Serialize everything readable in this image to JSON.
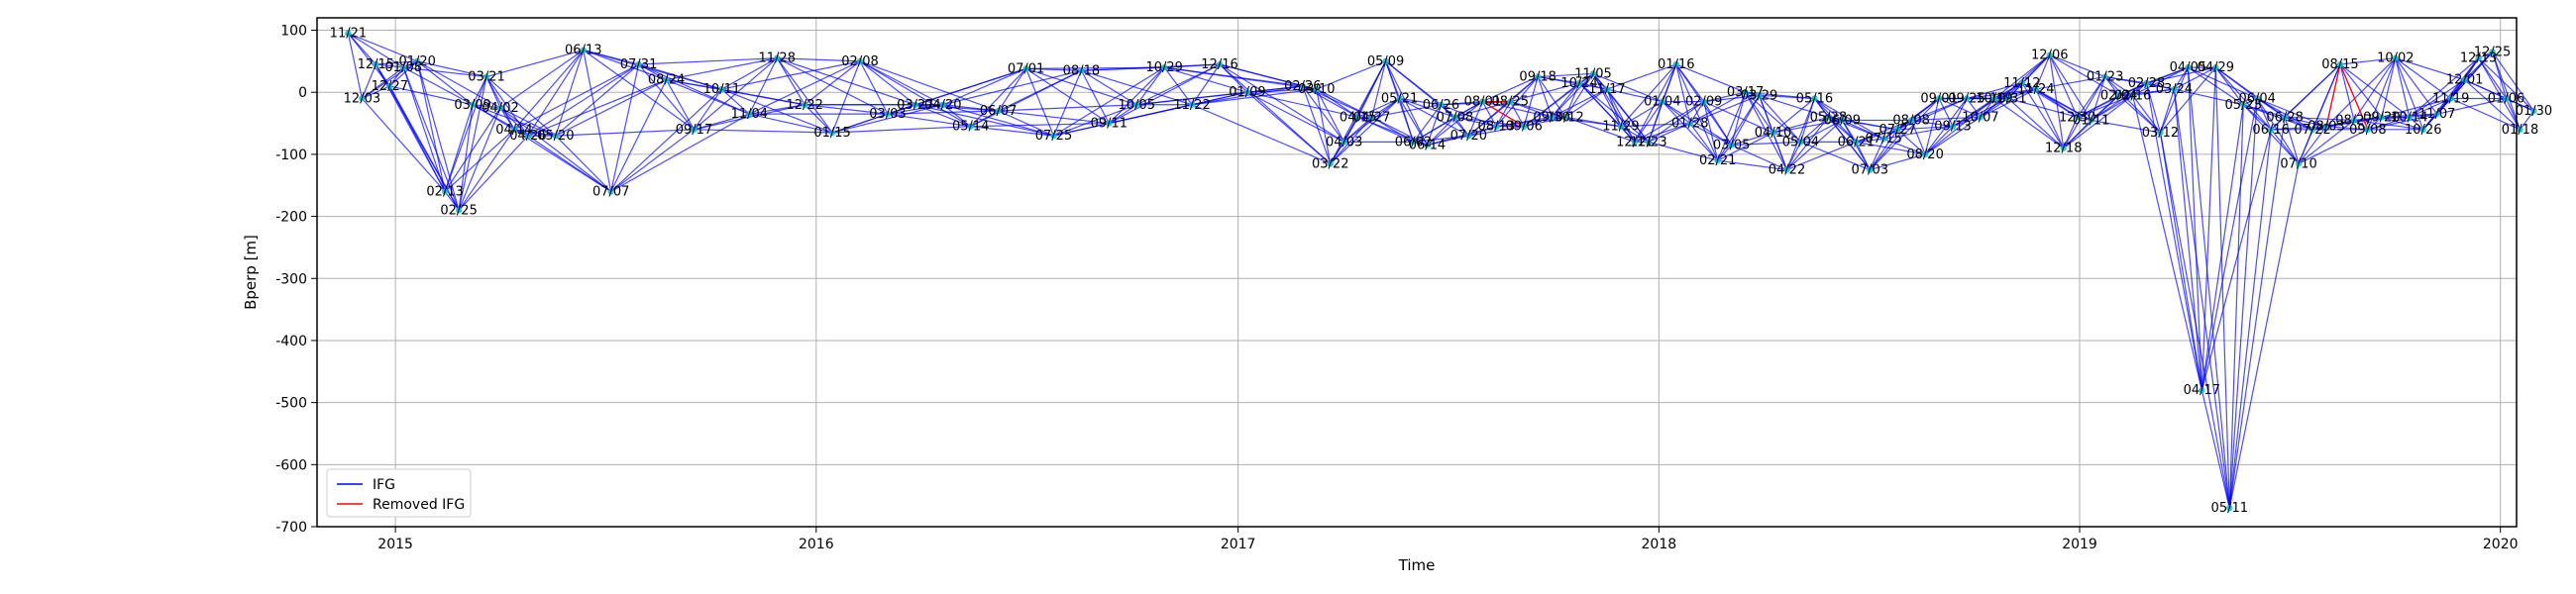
{
  "chart_data": {
    "type": "network",
    "xlabel": "Time",
    "ylabel": "Bperp [m]",
    "xlim": [
      "2014-10-25",
      "2020-01-15"
    ],
    "ylim": [
      -700,
      120
    ],
    "y_ticks": [
      100,
      0,
      -100,
      -200,
      -300,
      -400,
      -500,
      -600,
      -700
    ],
    "x_ticks": [
      {
        "date": "2015-01-01",
        "label": "2015"
      },
      {
        "date": "2016-01-01",
        "label": "2016"
      },
      {
        "date": "2017-01-01",
        "label": "2017"
      },
      {
        "date": "2018-01-01",
        "label": "2018"
      },
      {
        "date": "2019-01-01",
        "label": "2019"
      },
      {
        "date": "2020-01-01",
        "label": "2020"
      }
    ],
    "grid": true,
    "legend": {
      "position": "lower-left",
      "entries": [
        {
          "label": "IFG",
          "color": "#0000ff"
        },
        {
          "label": "Removed IFG",
          "color": "#ff0000"
        }
      ]
    },
    "colors": {
      "ifg": "#0000ff",
      "removed": "#ff0000",
      "point": "#17becf"
    },
    "points": [
      {
        "date": "2014-11-21",
        "y": 95,
        "label": "11/21"
      },
      {
        "date": "2014-12-03",
        "y": -10,
        "label": "12/03"
      },
      {
        "date": "2014-12-15",
        "y": 45,
        "label": "12/15"
      },
      {
        "date": "2014-12-27",
        "y": 10,
        "label": "12/27"
      },
      {
        "date": "2015-01-08",
        "y": 40,
        "label": "01/08"
      },
      {
        "date": "2015-01-20",
        "y": 50,
        "label": "01/20"
      },
      {
        "date": "2015-02-13",
        "y": -160,
        "label": "02/13"
      },
      {
        "date": "2015-02-25",
        "y": -190,
        "label": "02/25"
      },
      {
        "date": "2015-03-09",
        "y": -20,
        "label": "03/09"
      },
      {
        "date": "2015-03-21",
        "y": 25,
        "label": "03/21"
      },
      {
        "date": "2015-04-02",
        "y": -25,
        "label": "04/02"
      },
      {
        "date": "2015-04-14",
        "y": -60,
        "label": "04/14"
      },
      {
        "date": "2015-04-26",
        "y": -70,
        "label": "04/26"
      },
      {
        "date": "2015-05-20",
        "y": -70,
        "label": "05/20"
      },
      {
        "date": "2015-06-13",
        "y": 68,
        "label": "06/13"
      },
      {
        "date": "2015-07-07",
        "y": -160,
        "label": "07/07"
      },
      {
        "date": "2015-07-31",
        "y": 45,
        "label": "07/31"
      },
      {
        "date": "2015-08-24",
        "y": 20,
        "label": "08/24"
      },
      {
        "date": "2015-09-17",
        "y": -60,
        "label": "09/17"
      },
      {
        "date": "2015-10-11",
        "y": 5,
        "label": "10/11"
      },
      {
        "date": "2015-11-04",
        "y": -35,
        "label": "11/04"
      },
      {
        "date": "2015-11-28",
        "y": 55,
        "label": "11/28"
      },
      {
        "date": "2015-12-22",
        "y": -20,
        "label": "12/22"
      },
      {
        "date": "2016-01-15",
        "y": -65,
        "label": "01/15"
      },
      {
        "date": "2016-02-08",
        "y": 50,
        "label": "02/08"
      },
      {
        "date": "2016-03-03",
        "y": -35,
        "label": "03/03"
      },
      {
        "date": "2016-03-27",
        "y": -20,
        "label": "03/27"
      },
      {
        "date": "2016-04-20",
        "y": -20,
        "label": "04/20"
      },
      {
        "date": "2016-05-14",
        "y": -55,
        "label": "05/14"
      },
      {
        "date": "2016-06-07",
        "y": -30,
        "label": "06/07"
      },
      {
        "date": "2016-07-01",
        "y": 38,
        "label": "07/01"
      },
      {
        "date": "2016-07-25",
        "y": -70,
        "label": "07/25"
      },
      {
        "date": "2016-08-18",
        "y": 35,
        "label": "08/18"
      },
      {
        "date": "2016-09-11",
        "y": -50,
        "label": "09/11"
      },
      {
        "date": "2016-10-05",
        "y": -20,
        "label": "10/05"
      },
      {
        "date": "2016-10-29",
        "y": 40,
        "label": "10/29"
      },
      {
        "date": "2016-11-22",
        "y": -20,
        "label": "11/22"
      },
      {
        "date": "2016-12-16",
        "y": 45,
        "label": "12/16"
      },
      {
        "date": "2017-01-09",
        "y": 0,
        "label": "01/09"
      },
      {
        "date": "2017-02-26",
        "y": 10,
        "label": "02/26"
      },
      {
        "date": "2017-03-10",
        "y": 5,
        "label": "03/10"
      },
      {
        "date": "2017-03-22",
        "y": -115,
        "label": "03/22"
      },
      {
        "date": "2017-04-03",
        "y": -80,
        "label": "04/03"
      },
      {
        "date": "2017-04-15",
        "y": -40,
        "label": "04/15"
      },
      {
        "date": "2017-04-27",
        "y": -40,
        "label": "04/27"
      },
      {
        "date": "2017-05-09",
        "y": 50,
        "label": "05/09"
      },
      {
        "date": "2017-05-21",
        "y": -10,
        "label": "05/21"
      },
      {
        "date": "2017-06-02",
        "y": -80,
        "label": "06/02"
      },
      {
        "date": "2017-06-14",
        "y": -85,
        "label": "06/14"
      },
      {
        "date": "2017-06-26",
        "y": -20,
        "label": "06/26"
      },
      {
        "date": "2017-07-08",
        "y": -40,
        "label": "07/08"
      },
      {
        "date": "2017-07-20",
        "y": -70,
        "label": "07/20"
      },
      {
        "date": "2017-08-01",
        "y": -15,
        "label": "08/01"
      },
      {
        "date": "2017-08-13",
        "y": -55,
        "label": "08/13"
      },
      {
        "date": "2017-08-25",
        "y": -15,
        "label": "08/25"
      },
      {
        "date": "2017-09-06",
        "y": -55,
        "label": "09/06"
      },
      {
        "date": "2017-09-18",
        "y": 25,
        "label": "09/18"
      },
      {
        "date": "2017-09-30",
        "y": -40,
        "label": "09/30"
      },
      {
        "date": "2017-10-12",
        "y": -40,
        "label": "10/12"
      },
      {
        "date": "2017-10-24",
        "y": 15,
        "label": "10/24"
      },
      {
        "date": "2017-11-05",
        "y": 30,
        "label": "11/05"
      },
      {
        "date": "2017-11-17",
        "y": 5,
        "label": "11/17"
      },
      {
        "date": "2017-11-29",
        "y": -55,
        "label": "11/29"
      },
      {
        "date": "2017-12-11",
        "y": -80,
        "label": "12/11"
      },
      {
        "date": "2017-12-23",
        "y": -80,
        "label": "12/23"
      },
      {
        "date": "2018-01-04",
        "y": -15,
        "label": "01/04"
      },
      {
        "date": "2018-01-16",
        "y": 45,
        "label": "01/16"
      },
      {
        "date": "2018-01-28",
        "y": -50,
        "label": "01/28"
      },
      {
        "date": "2018-02-09",
        "y": -15,
        "label": "02/09"
      },
      {
        "date": "2018-02-21",
        "y": -110,
        "label": "02/21"
      },
      {
        "date": "2018-03-05",
        "y": -85,
        "label": "03/05"
      },
      {
        "date": "2018-03-17",
        "y": 0,
        "label": "03/17"
      },
      {
        "date": "2018-03-29",
        "y": -5,
        "label": "03/29"
      },
      {
        "date": "2018-04-10",
        "y": -65,
        "label": "04/10"
      },
      {
        "date": "2018-04-22",
        "y": -125,
        "label": "04/22"
      },
      {
        "date": "2018-05-04",
        "y": -80,
        "label": "05/04"
      },
      {
        "date": "2018-05-16",
        "y": -10,
        "label": "05/16"
      },
      {
        "date": "2018-05-28",
        "y": -40,
        "label": "05/28"
      },
      {
        "date": "2018-06-09",
        "y": -45,
        "label": "06/09"
      },
      {
        "date": "2018-06-21",
        "y": -80,
        "label": "06/21"
      },
      {
        "date": "2018-07-03",
        "y": -125,
        "label": "07/03"
      },
      {
        "date": "2018-07-15",
        "y": -75,
        "label": "07/15"
      },
      {
        "date": "2018-07-27",
        "y": -60,
        "label": "07/27"
      },
      {
        "date": "2018-08-08",
        "y": -45,
        "label": "08/08"
      },
      {
        "date": "2018-08-20",
        "y": -100,
        "label": "08/20"
      },
      {
        "date": "2018-09-01",
        "y": -10,
        "label": "09/01"
      },
      {
        "date": "2018-09-13",
        "y": -55,
        "label": "09/13"
      },
      {
        "date": "2018-09-25",
        "y": -10,
        "label": "09/25"
      },
      {
        "date": "2018-10-07",
        "y": -40,
        "label": "10/07"
      },
      {
        "date": "2018-10-19",
        "y": -10,
        "label": "10/19"
      },
      {
        "date": "2018-10-31",
        "y": -10,
        "label": "10/31"
      },
      {
        "date": "2018-11-12",
        "y": 15,
        "label": "11/12"
      },
      {
        "date": "2018-11-24",
        "y": 5,
        "label": "11/24"
      },
      {
        "date": "2018-12-06",
        "y": 60,
        "label": "12/06"
      },
      {
        "date": "2018-12-18",
        "y": -90,
        "label": "12/18"
      },
      {
        "date": "2018-12-30",
        "y": -40,
        "label": "12/30"
      },
      {
        "date": "2019-01-11",
        "y": -45,
        "label": "01/11"
      },
      {
        "date": "2019-01-23",
        "y": 25,
        "label": "01/23"
      },
      {
        "date": "2019-02-04",
        "y": -5,
        "label": "02/04"
      },
      {
        "date": "2019-02-16",
        "y": -5,
        "label": "02/16"
      },
      {
        "date": "2019-02-28",
        "y": 15,
        "label": "02/28"
      },
      {
        "date": "2019-03-12",
        "y": -65,
        "label": "03/12"
      },
      {
        "date": "2019-03-24",
        "y": 5,
        "label": "03/24"
      },
      {
        "date": "2019-04-05",
        "y": 40,
        "label": "04/05"
      },
      {
        "date": "2019-04-17",
        "y": -480,
        "label": "04/17"
      },
      {
        "date": "2019-04-29",
        "y": 40,
        "label": "04/29"
      },
      {
        "date": "2019-05-11",
        "y": -670,
        "label": "05/11"
      },
      {
        "date": "2019-05-23",
        "y": -20,
        "label": "05/23"
      },
      {
        "date": "2019-06-04",
        "y": -10,
        "label": "06/04"
      },
      {
        "date": "2019-06-16",
        "y": -60,
        "label": "06/16"
      },
      {
        "date": "2019-06-28",
        "y": -40,
        "label": "06/28"
      },
      {
        "date": "2019-07-10",
        "y": -115,
        "label": "07/10"
      },
      {
        "date": "2019-07-22",
        "y": -60,
        "label": "07/22"
      },
      {
        "date": "2019-08-03",
        "y": -55,
        "label": "08/03"
      },
      {
        "date": "2019-08-15",
        "y": 45,
        "label": "08/15"
      },
      {
        "date": "2019-08-27",
        "y": -45,
        "label": "08/27"
      },
      {
        "date": "2019-09-08",
        "y": -60,
        "label": "09/08"
      },
      {
        "date": "2019-09-20",
        "y": -40,
        "label": "09/20"
      },
      {
        "date": "2019-10-02",
        "y": 55,
        "label": "10/02"
      },
      {
        "date": "2019-10-14",
        "y": -40,
        "label": "10/14"
      },
      {
        "date": "2019-10-26",
        "y": -60,
        "label": "10/26"
      },
      {
        "date": "2019-11-07",
        "y": -35,
        "label": "11/07"
      },
      {
        "date": "2019-11-19",
        "y": -10,
        "label": "11/19"
      },
      {
        "date": "2019-12-01",
        "y": 20,
        "label": "12/01"
      },
      {
        "date": "2019-12-13",
        "y": 55,
        "label": "12/13"
      },
      {
        "date": "2019-12-25",
        "y": 65,
        "label": "12/25"
      },
      {
        "date": "2020-01-06",
        "y": -10,
        "label": "01/06"
      },
      {
        "date": "2020-01-18",
        "y": -60,
        "label": "01/18"
      },
      {
        "date": "2020-01-30",
        "y": -30,
        "label": "01/30"
      }
    ],
    "removed_edges": [
      [
        "2017-08-01",
        "2017-08-25"
      ],
      [
        "2017-08-13",
        "2017-09-06"
      ],
      [
        "2017-08-01",
        "2017-09-06"
      ],
      [
        "2019-08-03",
        "2019-08-15"
      ],
      [
        "2019-08-15",
        "2019-09-08"
      ]
    ]
  }
}
